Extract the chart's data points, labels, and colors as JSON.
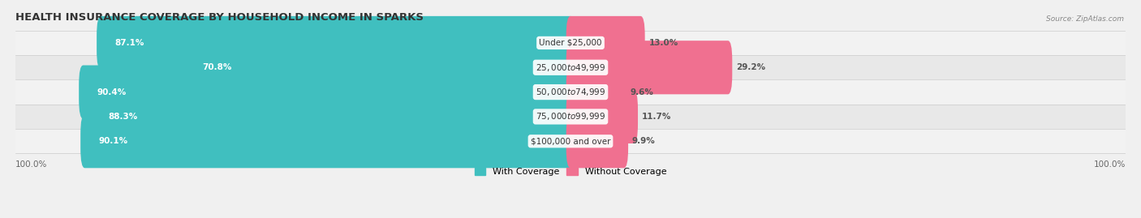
{
  "title": "HEALTH INSURANCE COVERAGE BY HOUSEHOLD INCOME IN SPARKS",
  "source": "Source: ZipAtlas.com",
  "categories": [
    "Under $25,000",
    "$25,000 to $49,999",
    "$50,000 to $74,999",
    "$75,000 to $99,999",
    "$100,000 and over"
  ],
  "with_coverage": [
    87.1,
    70.8,
    90.4,
    88.3,
    90.1
  ],
  "without_coverage": [
    13.0,
    29.2,
    9.6,
    11.7,
    9.9
  ],
  "color_with": "#40bfbf",
  "color_without": "#f07090",
  "row_bg_light": "#f2f2f2",
  "row_bg_dark": "#e8e8e8",
  "title_fontsize": 9.5,
  "label_fontsize": 7.5,
  "pct_fontsize": 7.5,
  "tick_fontsize": 7.5,
  "legend_fontsize": 8
}
